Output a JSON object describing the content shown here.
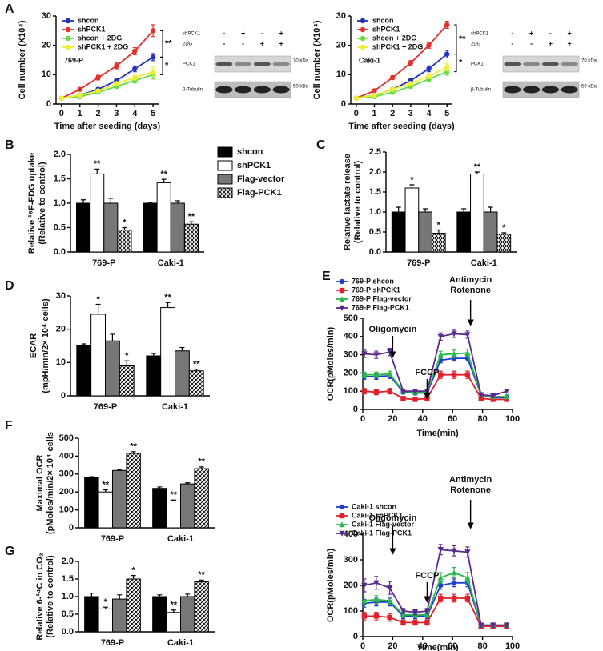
{
  "chart_data": [
    {
      "type": "line",
      "panel": "A",
      "title": "769-P",
      "xlabel": "Time after seeding (days)",
      "ylabel": [
        "Cell number (X10⁴)"
      ],
      "x": [
        0,
        1,
        2,
        3,
        4,
        5
      ],
      "xlim": [
        -0.3,
        5.3
      ],
      "xticks": [
        0,
        1,
        2,
        3,
        4,
        5
      ],
      "ylim": [
        0,
        30
      ],
      "yticks": [
        0,
        10,
        20,
        30
      ],
      "series": [
        {
          "name": "shcon",
          "color": "#2233bb",
          "marker": "circle",
          "values": [
            2,
            3,
            5,
            8,
            12,
            16
          ],
          "errors": [
            0.3,
            0.4,
            0.6,
            0.8,
            1,
            1.2
          ]
        },
        {
          "name": "shPCK1",
          "color": "#e0302a",
          "marker": "circle",
          "values": [
            2,
            5,
            9,
            13,
            18,
            25
          ],
          "errors": [
            0.3,
            0.5,
            0.8,
            1,
            1.2,
            2
          ]
        },
        {
          "name": "shcon + 2DG",
          "color": "#66dd44",
          "marker": "circle",
          "values": [
            2,
            2.5,
            4,
            6,
            8,
            10
          ],
          "errors": [
            0.3,
            0.3,
            0.5,
            0.6,
            0.8,
            1.5
          ]
        },
        {
          "name": "shPCK1 + 2DG",
          "color": "#eeee33",
          "marker": "circle",
          "values": [
            2,
            3,
            4.5,
            7,
            9,
            11
          ],
          "errors": [
            0.3,
            0.3,
            0.5,
            0.6,
            0.8,
            1.5
          ]
        }
      ],
      "annotations": [
        "**",
        "*"
      ]
    },
    {
      "type": "line",
      "title": "Caki-1",
      "xlabel": "Time after seeding (days)",
      "ylabel": [
        "Cell number (X10⁴)"
      ],
      "x": [
        0,
        1,
        2,
        3,
        4,
        5
      ],
      "xlim": [
        -0.3,
        5.3
      ],
      "xticks": [
        0,
        1,
        2,
        3,
        4,
        5
      ],
      "ylim": [
        0,
        30
      ],
      "yticks": [
        0,
        10,
        20,
        30
      ],
      "series": [
        {
          "name": "shcon",
          "color": "#2233bb",
          "marker": "circle",
          "values": [
            2,
            3,
            5,
            8,
            12,
            17
          ],
          "errors": [
            0.3,
            0.4,
            0.6,
            0.8,
            1,
            1.3
          ]
        },
        {
          "name": "shPCK1",
          "color": "#e0302a",
          "marker": "circle",
          "values": [
            2,
            4.5,
            9,
            14,
            20,
            27
          ],
          "errors": [
            0.3,
            0.5,
            0.6,
            0.8,
            1,
            1.2
          ]
        },
        {
          "name": "shcon + 2DG",
          "color": "#66dd44",
          "marker": "circle",
          "values": [
            2,
            2.5,
            4,
            6,
            8.5,
            11
          ],
          "errors": [
            0.3,
            0.3,
            0.5,
            0.6,
            0.8,
            1.2
          ]
        },
        {
          "name": "shPCK1 + 2DG",
          "color": "#eeee33",
          "marker": "circle",
          "values": [
            2,
            3,
            5,
            7,
            9.5,
            12.5
          ],
          "errors": [
            0.3,
            0.3,
            0.5,
            0.6,
            0.8,
            1.2
          ]
        }
      ],
      "annotations": [
        "**",
        "*"
      ]
    },
    {
      "type": "bar",
      "panel": "B",
      "ylabel": [
        "Relative ¹⁸F-FDG uptake",
        "(Relative to control)"
      ],
      "categories": [
        "769-P",
        "Caki-1"
      ],
      "ylim": [
        0,
        2
      ],
      "yticks": [
        {
          "value": 0,
          "label": "0.0"
        },
        0.5,
        {
          "value": 1,
          "label": "1.0"
        },
        1.5,
        {
          "value": 2,
          "label": "2.0"
        }
      ],
      "series": [
        {
          "name": "shcon",
          "color": "#000000",
          "values": [
            1.0,
            1.0
          ],
          "errors": [
            0.07,
            0.02
          ]
        },
        {
          "name": "shPCK1",
          "color": "#ffffff",
          "values": [
            1.6,
            1.42
          ],
          "errors": [
            0.1,
            0.07
          ],
          "annotations": [
            "**",
            "**"
          ]
        },
        {
          "name": "Flag-vector",
          "color": "#777777",
          "values": [
            1.0,
            1.0
          ],
          "errors": [
            0.1,
            0.05
          ]
        },
        {
          "name": "Flag-PCK1",
          "color": "#ffffff",
          "hatch": true,
          "values": [
            0.45,
            0.57
          ],
          "errors": [
            0.05,
            0.05
          ],
          "annotations": [
            "*",
            "**"
          ]
        }
      ]
    },
    {
      "type": "bar",
      "panel": "C",
      "ylabel": [
        "Relative lactate release",
        "(Relative to control)"
      ],
      "categories": [
        "769-P",
        "Caki-1"
      ],
      "ylim": [
        0,
        2.5
      ],
      "yticks": [
        {
          "value": 0,
          "label": "0.0"
        },
        0.5,
        {
          "value": 1,
          "label": "1.0"
        },
        1.5,
        {
          "value": 2,
          "label": "2.0"
        },
        2.5
      ],
      "series": [
        {
          "color": "#000000",
          "values": [
            1.0,
            1.0
          ],
          "errors": [
            0.12,
            0.08
          ]
        },
        {
          "color": "#ffffff",
          "values": [
            1.6,
            1.95
          ],
          "errors": [
            0.08,
            0.05
          ],
          "annotations": [
            "*",
            "**"
          ]
        },
        {
          "color": "#777777",
          "values": [
            1.0,
            1.0
          ],
          "errors": [
            0.08,
            0.12
          ]
        },
        {
          "color": "#ffffff",
          "hatch": true,
          "values": [
            0.47,
            0.45
          ],
          "errors": [
            0.08,
            0.03
          ],
          "annotations": [
            "*",
            "*"
          ]
        }
      ]
    },
    {
      "type": "bar",
      "panel": "D",
      "ylabel": [
        "ECAR",
        "(mpH/min/2× 10⁴ cells)"
      ],
      "categories": [
        "769-P",
        "Caki-1"
      ],
      "ylim": [
        0,
        30
      ],
      "yticks": [
        0,
        10,
        20,
        30
      ],
      "series": [
        {
          "color": "#000000",
          "values": [
            15,
            12
          ],
          "errors": [
            0.6,
            0.7
          ]
        },
        {
          "color": "#ffffff",
          "values": [
            24.5,
            26.5
          ],
          "errors": [
            3,
            1.5
          ],
          "annotations": [
            "*",
            "**"
          ]
        },
        {
          "color": "#777777",
          "values": [
            16.5,
            13.5
          ],
          "errors": [
            2,
            1
          ]
        },
        {
          "color": "#ffffff",
          "hatch": true,
          "values": [
            9,
            7.5
          ],
          "errors": [
            1.5,
            0.5
          ],
          "annotations": [
            "*",
            "**"
          ]
        }
      ]
    },
    {
      "type": "line",
      "panel": "E",
      "xlabel": "Time(min)",
      "ylabel": [
        "OCR(pMoles/min)"
      ],
      "x": [
        1,
        9,
        18,
        27,
        35,
        43,
        52,
        61,
        70,
        79,
        87,
        96
      ],
      "xlim": [
        0,
        100
      ],
      "xticks": [
        0,
        20,
        40,
        60,
        80,
        100
      ],
      "ylim": [
        0,
        500
      ],
      "yticks": [
        0,
        100,
        200,
        300,
        400,
        500
      ],
      "series": [
        {
          "name": "769-P shcon",
          "color": "#1f3fcf",
          "marker": "circle",
          "values": [
            180,
            180,
            185,
            95,
            90,
            90,
            270,
            280,
            280,
            80,
            65,
            65
          ],
          "errors": [
            15,
            15,
            15,
            10,
            10,
            10,
            15,
            15,
            15,
            10,
            10,
            10
          ]
        },
        {
          "name": "769-P shPCK1",
          "color": "#e0202a",
          "marker": "square",
          "values": [
            100,
            95,
            100,
            60,
            55,
            60,
            190,
            190,
            190,
            60,
            55,
            55
          ],
          "errors": [
            15,
            15,
            15,
            10,
            10,
            10,
            20,
            20,
            20,
            10,
            10,
            10
          ]
        },
        {
          "name": "769-P Flag-vector",
          "color": "#2db84a",
          "marker": "triangle",
          "values": [
            190,
            190,
            195,
            100,
            95,
            95,
            300,
            305,
            310,
            80,
            70,
            70
          ],
          "errors": [
            15,
            15,
            15,
            10,
            10,
            10,
            20,
            20,
            20,
            10,
            10,
            10
          ]
        },
        {
          "name": "769-P Flag-PCK1",
          "color": "#5a2a8a",
          "marker": "triangle-down",
          "values": [
            305,
            300,
            315,
            100,
            100,
            100,
            400,
            415,
            410,
            80,
            75,
            100
          ],
          "errors": [
            20,
            20,
            20,
            10,
            10,
            10,
            20,
            20,
            20,
            10,
            10,
            10
          ]
        }
      ],
      "annotations": [
        {
          "text": [
            "Oligomycin"
          ],
          "x": 20
        },
        {
          "text": [
            "FCCP"
          ],
          "x": 43
        },
        {
          "text": [
            "Antimycin",
            "Rotenone"
          ],
          "x": 72
        }
      ]
    },
    {
      "type": "bar",
      "panel": "F",
      "ylabel": [
        "Maximal OCR",
        "(pMoles/min/2× 10⁴ cells"
      ],
      "categories": [
        "769-P",
        "Caki-1"
      ],
      "ylim": [
        0,
        500
      ],
      "yticks": [
        0,
        100,
        200,
        300,
        400,
        500
      ],
      "series": [
        {
          "color": "#000000",
          "values": [
            280,
            220
          ],
          "errors": [
            5,
            8
          ]
        },
        {
          "color": "#ffffff",
          "values": [
            200,
            150
          ],
          "errors": [
            12,
            5
          ],
          "annotations": [
            "**",
            "**"
          ]
        },
        {
          "color": "#777777",
          "values": [
            320,
            245
          ],
          "errors": [
            5,
            6
          ]
        },
        {
          "color": "#ffffff",
          "hatch": true,
          "values": [
            415,
            330
          ],
          "errors": [
            10,
            10
          ],
          "annotations": [
            "**",
            "**"
          ]
        }
      ]
    },
    {
      "type": "line",
      "xlabel": "Time(min)",
      "ylabel": [
        "OCR(pMoles/min)"
      ],
      "x": [
        1,
        9,
        18,
        27,
        35,
        43,
        52,
        61,
        70,
        79,
        87,
        96
      ],
      "xlim": [
        0,
        100
      ],
      "xticks": [
        0,
        20,
        40,
        60,
        80,
        100
      ],
      "ylim": [
        0,
        400
      ],
      "yticks": [
        0,
        100,
        200,
        300,
        400
      ],
      "series": [
        {
          "name": "Caki-1 shcon",
          "color": "#1f3fcf",
          "marker": "circle",
          "values": [
            130,
            135,
            135,
            80,
            80,
            80,
            200,
            210,
            210,
            45,
            40,
            45
          ],
          "errors": [
            15,
            15,
            15,
            10,
            10,
            10,
            15,
            15,
            15,
            8,
            8,
            8
          ]
        },
        {
          "name": "Caki-1 shPCK1",
          "color": "#e0202a",
          "marker": "square",
          "values": [
            80,
            80,
            75,
            55,
            55,
            55,
            150,
            150,
            150,
            40,
            40,
            40
          ],
          "errors": [
            15,
            15,
            15,
            10,
            10,
            10,
            15,
            15,
            15,
            8,
            8,
            8
          ]
        },
        {
          "name": "Caki-1 Flag-vector",
          "color": "#2db84a",
          "marker": "triangle",
          "values": [
            140,
            145,
            140,
            85,
            85,
            85,
            230,
            250,
            230,
            45,
            45,
            45
          ],
          "errors": [
            15,
            15,
            15,
            10,
            10,
            10,
            20,
            20,
            20,
            8,
            8,
            8
          ]
        },
        {
          "name": "Caki-1 Flag-PCK1",
          "color": "#5a2a8a",
          "marker": "triangle-down",
          "values": [
            200,
            210,
            190,
            100,
            95,
            100,
            340,
            335,
            330,
            45,
            45,
            45
          ],
          "errors": [
            25,
            25,
            25,
            10,
            10,
            10,
            20,
            20,
            20,
            8,
            8,
            8
          ]
        }
      ],
      "annotations": [
        {
          "text": [
            "Oligomycin"
          ],
          "x": 20
        },
        {
          "text": [
            "FCCP"
          ],
          "x": 43
        },
        {
          "text": [
            "Antimycin",
            "Rotenone"
          ],
          "x": 72
        }
      ]
    },
    {
      "type": "bar",
      "panel": "G",
      "ylabel": [
        "Relative 6-¹⁴C in CO₂",
        "(Relative to control)"
      ],
      "categories": [
        "769-P",
        "Caki-1"
      ],
      "ylim": [
        0,
        2
      ],
      "yticks": [
        {
          "value": 0,
          "label": "0.0"
        },
        0.5,
        {
          "value": 1,
          "label": "1.0"
        },
        1.5,
        {
          "value": 2,
          "label": "2.0"
        }
      ],
      "series": [
        {
          "color": "#000000",
          "values": [
            1.0,
            1.0
          ],
          "errors": [
            0.1,
            0.05
          ]
        },
        {
          "color": "#ffffff",
          "values": [
            0.65,
            0.55
          ],
          "errors": [
            0.05,
            0.07
          ],
          "annotations": [
            "*",
            "**"
          ]
        },
        {
          "color": "#777777",
          "values": [
            0.93,
            1.0
          ],
          "errors": [
            0.12,
            0.07
          ]
        },
        {
          "color": "#ffffff",
          "hatch": true,
          "values": [
            1.5,
            1.42
          ],
          "errors": [
            0.1,
            0.05
          ],
          "annotations": [
            "*",
            "**"
          ]
        }
      ]
    }
  ],
  "blots": [
    {
      "rows": [
        {
          "label": "shPCK1",
          "signs": [
            "-",
            "+",
            "-",
            "+"
          ]
        },
        {
          "label": "2DG",
          "signs": [
            "-",
            "-",
            "+",
            "+"
          ]
        }
      ],
      "bands": [
        {
          "label": "PCK1",
          "size": "70 kDa"
        },
        {
          "label": "β-Tubulin",
          "size": "50 kDa"
        }
      ]
    },
    {
      "rows": [
        {
          "label": "shPCK1",
          "signs": [
            "-",
            "+",
            "-",
            "+"
          ]
        },
        {
          "label": "2DG",
          "signs": [
            "-",
            "-",
            "+",
            "+"
          ]
        }
      ],
      "bands": [
        {
          "label": "PCK1",
          "size": "70 kDa"
        },
        {
          "label": "β-Tubulin",
          "size": "50 kDa"
        }
      ]
    }
  ]
}
